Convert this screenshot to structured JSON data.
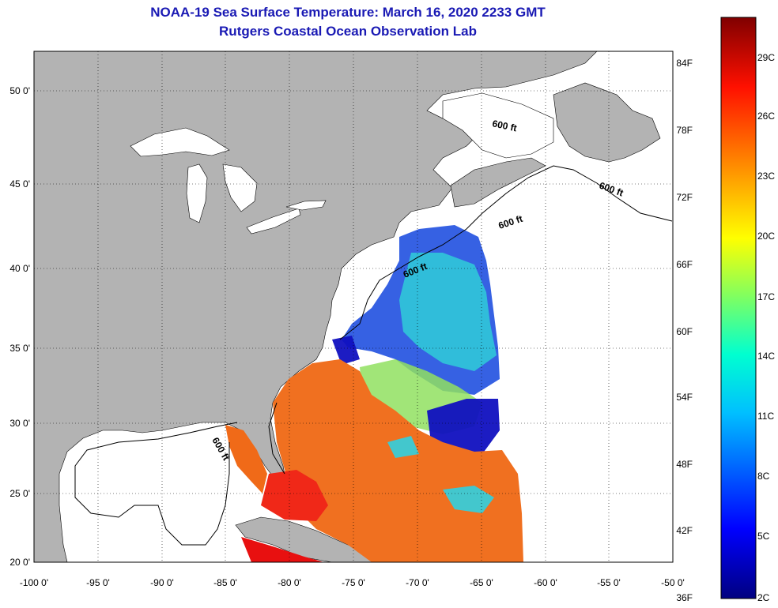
{
  "title": {
    "line1": "NOAA-19 Sea Surface Temperature:  March 16, 2020 2233 GMT",
    "line2": "Rutgers Coastal Ocean Observation Lab"
  },
  "axes": {
    "lon_ticks": [
      "-100 0'",
      "-95 0'",
      "-90 0'",
      "-85 0'",
      "-80 0'",
      "-75 0'",
      "-70 0'",
      "-65 0'",
      "-60 0'",
      "-55 0'",
      "-50 0'"
    ],
    "lat_ticks": [
      "50 0'",
      "45 0'",
      "40 0'",
      "35 0'",
      "30 0'",
      "25 0'",
      "20 0'"
    ]
  },
  "isobath_labels": [
    "600 ft",
    "600 ft",
    "600 ft",
    "600 ft",
    "600 ft"
  ],
  "colorbar": {
    "fahrenheit": [
      "84F",
      "78F",
      "72F",
      "66F",
      "60F",
      "54F",
      "48F",
      "42F",
      "36F"
    ],
    "celsius": [
      "29C",
      "26C",
      "23C",
      "20C",
      "17C",
      "14C",
      "11C",
      "8C",
      "5C",
      "2C"
    ]
  },
  "colors": {
    "land": "#b3b3b3",
    "title": "#1a1ab4"
  }
}
